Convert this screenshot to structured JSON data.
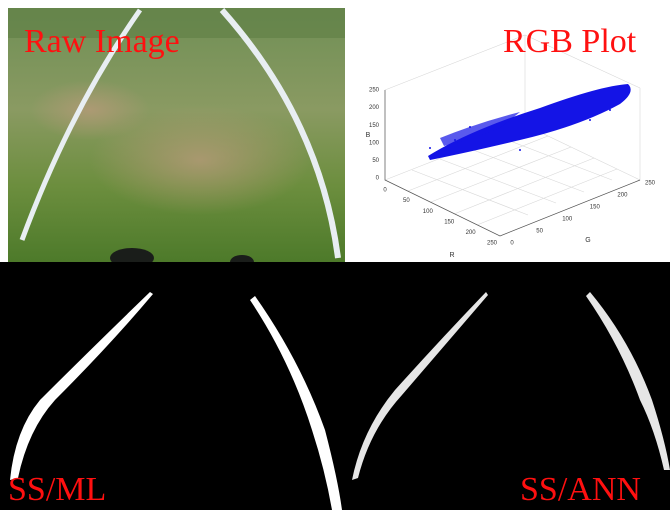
{
  "panels": [
    {
      "label": "Raw Image"
    },
    {
      "label": "RGB Plot"
    },
    {
      "label": "SS/ML"
    },
    {
      "label": "SS/ANN"
    }
  ],
  "rgb_plot": {
    "b_label": "B",
    "r_label": "R",
    "g_label": "G",
    "b_ticks": [
      "0",
      "50",
      "100",
      "150",
      "200",
      "250"
    ],
    "r_ticks": [
      "0",
      "50",
      "100",
      "150",
      "200",
      "250"
    ],
    "g_ticks": [
      "0",
      "50",
      "100",
      "150",
      "200",
      "250"
    ]
  }
}
